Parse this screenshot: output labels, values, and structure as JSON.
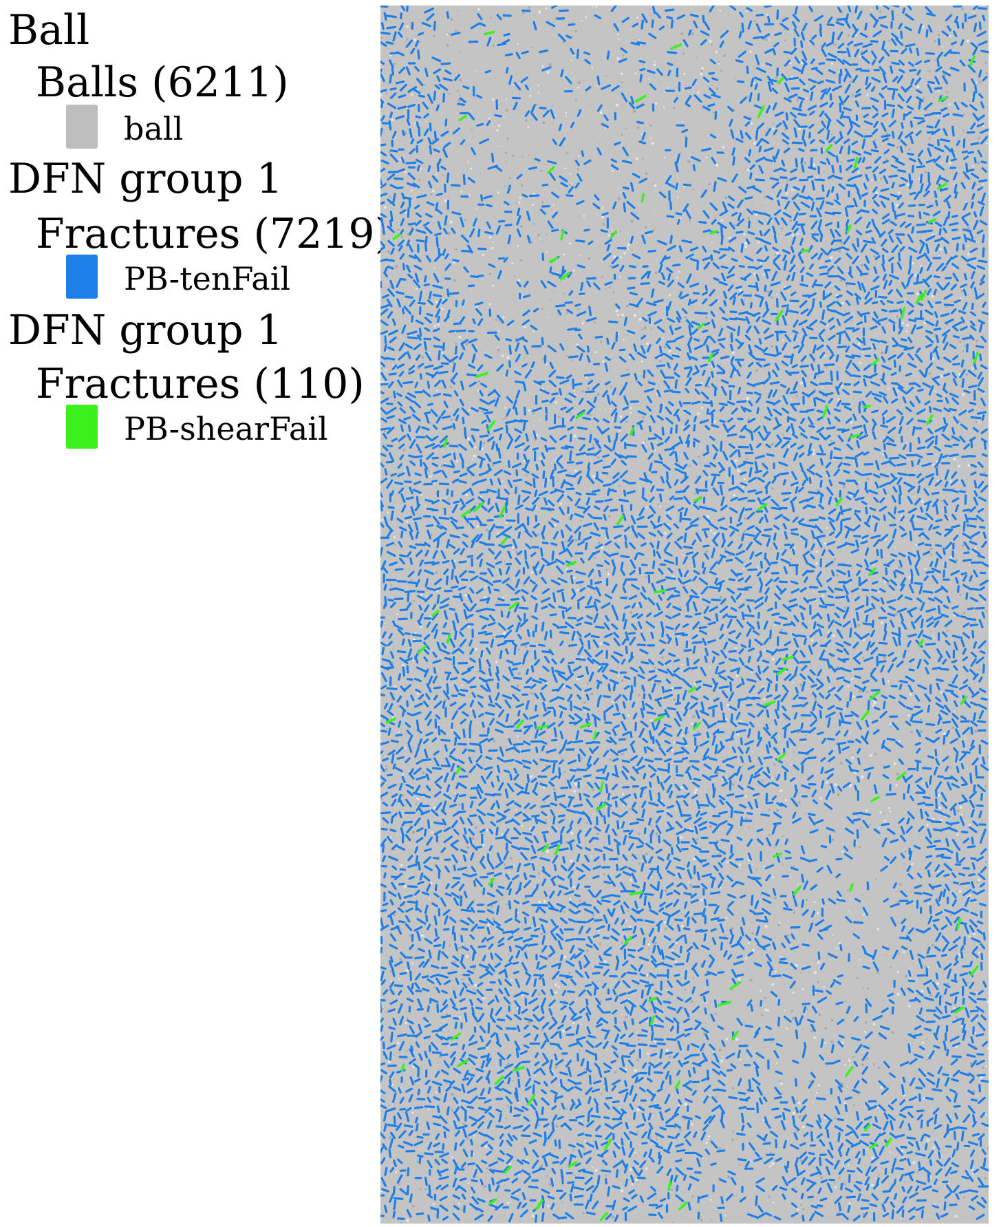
{
  "legend": {
    "ball_group": {
      "title": "Ball",
      "subtitle": "Balls (6211)",
      "item_label": "ball",
      "color": "#bdbdbd"
    },
    "tension_group": {
      "title": "DFN group 1",
      "subtitle": "Fractures (7219)",
      "item_label": "PB-tenFail",
      "color": "#1f7fe8"
    },
    "shear_group": {
      "title": "DFN group 1",
      "subtitle": "Fractures (110)",
      "item_label": "PB-shearFail",
      "color": "#3cf01e"
    }
  },
  "specimen": {
    "background_color": "#c4c4c4",
    "ball_count": 6211,
    "tension_crack_count": 7219,
    "shear_crack_count": 110
  }
}
